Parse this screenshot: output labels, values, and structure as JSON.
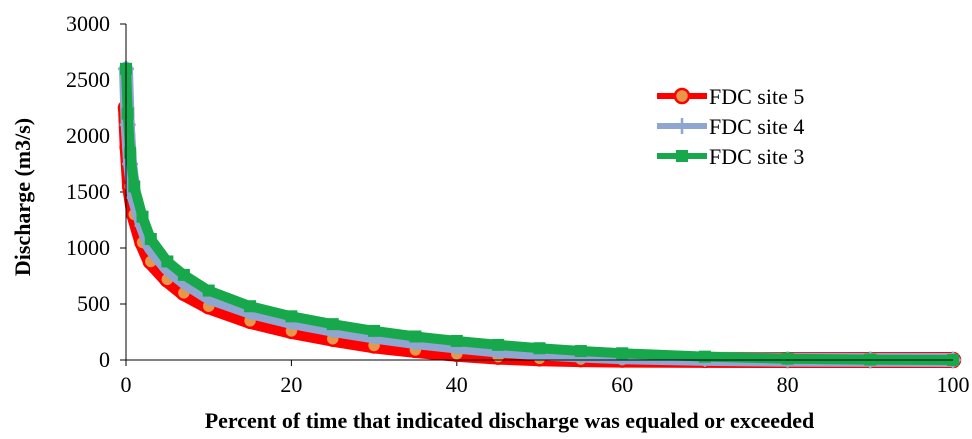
{
  "chart_data": {
    "type": "line",
    "title": "",
    "xlabel": "Percent of time that indicated discharge was equaled or exceeded",
    "ylabel": "Discharge (m3/s)",
    "xlim": [
      0,
      100
    ],
    "ylim": [
      0,
      3000
    ],
    "xticks": [
      0,
      20,
      40,
      60,
      80,
      100
    ],
    "yticks": [
      0,
      500,
      1000,
      1500,
      2000,
      2500,
      3000
    ],
    "xtick_labels": [
      "0",
      "20",
      "40",
      "60",
      "80",
      "100"
    ],
    "ytick_labels": [
      "0",
      "500",
      "1000",
      "1500",
      "2000",
      "2500",
      "3000"
    ],
    "grid": false,
    "legend_position": "top-right",
    "series": [
      {
        "name": "FDC site 5",
        "color": "#ff0000",
        "marker": "circle",
        "marker_fill": "#e8964a",
        "x": [
          0,
          0.2,
          0.5,
          1,
          2,
          3,
          5,
          7,
          10,
          15,
          20,
          25,
          30,
          35,
          40,
          45,
          50,
          55,
          60,
          70,
          80,
          90,
          100
        ],
        "y": [
          2250,
          1900,
          1550,
          1300,
          1050,
          880,
          720,
          600,
          480,
          350,
          260,
          190,
          130,
          90,
          55,
          30,
          15,
          8,
          4,
          1,
          0,
          0,
          0
        ]
      },
      {
        "name": "FDC site 4",
        "color": "#8ea6d0",
        "marker": "plus",
        "marker_fill": "#8ea6d0",
        "x": [
          0,
          0.2,
          0.5,
          1,
          2,
          3,
          5,
          7,
          10,
          15,
          20,
          25,
          30,
          35,
          40,
          45,
          50,
          55,
          60,
          70,
          80,
          90,
          100
        ],
        "y": [
          2600,
          2100,
          1750,
          1450,
          1200,
          1000,
          820,
          700,
          560,
          430,
          340,
          270,
          210,
          160,
          120,
          85,
          60,
          40,
          25,
          10,
          3,
          1,
          0
        ]
      },
      {
        "name": "FDC site 3",
        "color": "#17a84b",
        "marker": "square",
        "marker_fill": "#17a84b",
        "x": [
          0,
          0.2,
          0.5,
          1,
          2,
          3,
          5,
          7,
          10,
          15,
          20,
          25,
          30,
          35,
          40,
          45,
          50,
          55,
          60,
          70,
          80,
          90,
          100
        ],
        "y": [
          2600,
          2200,
          1850,
          1550,
          1280,
          1080,
          880,
          760,
          620,
          480,
          390,
          320,
          260,
          210,
          170,
          135,
          105,
          80,
          60,
          30,
          12,
          4,
          0
        ]
      }
    ]
  }
}
